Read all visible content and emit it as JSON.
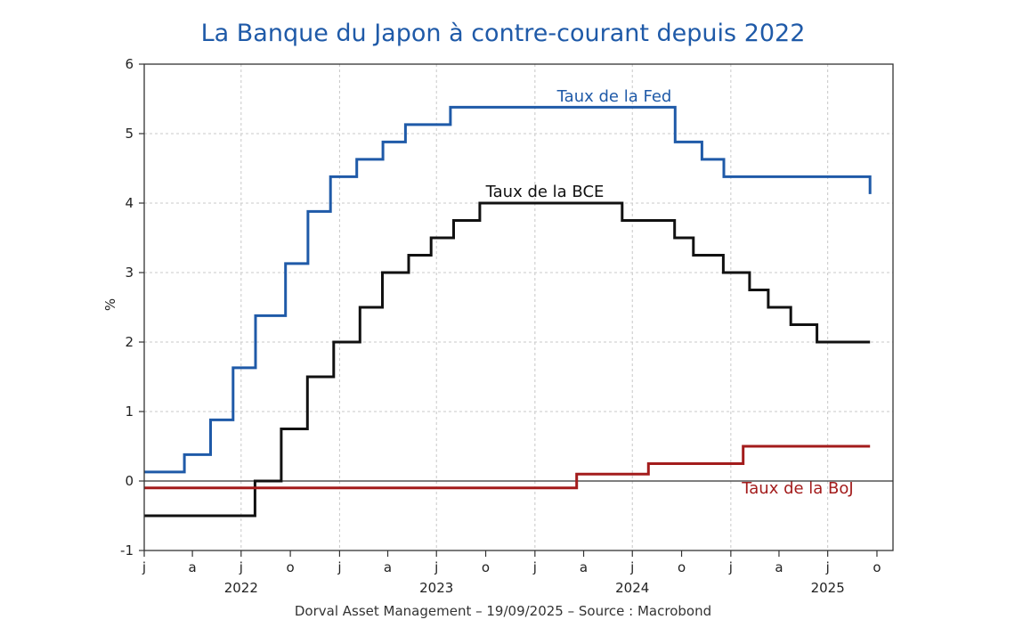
{
  "title": "La Banque du Japon à contre-courant depuis 2022",
  "source": "Dorval Asset Management – 19/09/2025  –  Source : Macrobond",
  "colors": {
    "fed": "#1f5aa8",
    "ecb": "#111111",
    "boj": "#a31c1c",
    "title": "#1f5aa8"
  },
  "chart_data": {
    "type": "line",
    "title": "La Banque du Japon à contre-courant depuis 2022",
    "xlabel": "",
    "ylabel": "%",
    "ylim": [
      -1,
      6
    ],
    "yticks": [
      -1,
      0,
      1,
      2,
      3,
      4,
      5,
      6
    ],
    "xlim": [
      "2022-01-01",
      "2025-10-31"
    ],
    "x_tick_labels": [
      {
        "date": "2022-01-01",
        "label": "j"
      },
      {
        "date": "2022-04-01",
        "label": "a"
      },
      {
        "date": "2022-07-01",
        "label": "j"
      },
      {
        "date": "2022-10-01",
        "label": "o"
      },
      {
        "date": "2023-01-01",
        "label": "j"
      },
      {
        "date": "2023-04-01",
        "label": "a"
      },
      {
        "date": "2023-07-01",
        "label": "j"
      },
      {
        "date": "2023-10-01",
        "label": "o"
      },
      {
        "date": "2024-01-01",
        "label": "j"
      },
      {
        "date": "2024-04-01",
        "label": "a"
      },
      {
        "date": "2024-07-01",
        "label": "j"
      },
      {
        "date": "2024-10-01",
        "label": "o"
      },
      {
        "date": "2025-01-01",
        "label": "j"
      },
      {
        "date": "2025-04-01",
        "label": "a"
      },
      {
        "date": "2025-07-01",
        "label": "j"
      },
      {
        "date": "2025-10-01",
        "label": "o"
      }
    ],
    "year_labels": [
      {
        "date": "2022-07-01",
        "label": "2022"
      },
      {
        "date": "2023-07-01",
        "label": "2023"
      },
      {
        "date": "2024-07-01",
        "label": "2024"
      },
      {
        "date": "2025-07-01",
        "label": "2025"
      }
    ],
    "grid": true,
    "step": true,
    "series": [
      {
        "name": "Taux de la Fed",
        "color": "#1f5aa8",
        "label": "Taux de la Fed",
        "points": [
          [
            "2022-01-01",
            0.13
          ],
          [
            "2022-03-17",
            0.38
          ],
          [
            "2022-05-05",
            0.88
          ],
          [
            "2022-06-16",
            1.63
          ],
          [
            "2022-07-28",
            2.38
          ],
          [
            "2022-09-22",
            3.13
          ],
          [
            "2022-11-03",
            3.88
          ],
          [
            "2022-12-15",
            4.38
          ],
          [
            "2023-02-02",
            4.63
          ],
          [
            "2023-03-23",
            4.88
          ],
          [
            "2023-05-04",
            5.13
          ],
          [
            "2023-07-27",
            5.38
          ],
          [
            "2024-09-19",
            4.88
          ],
          [
            "2024-11-08",
            4.63
          ],
          [
            "2024-12-19",
            4.38
          ],
          [
            "2025-09-18",
            4.13
          ]
        ]
      },
      {
        "name": "Taux de la BCE",
        "color": "#111111",
        "label": "Taux de la BCE",
        "points": [
          [
            "2022-01-01",
            -0.5
          ],
          [
            "2022-07-27",
            0.0
          ],
          [
            "2022-09-14",
            0.75
          ],
          [
            "2022-11-02",
            1.5
          ],
          [
            "2022-12-21",
            2.0
          ],
          [
            "2023-02-08",
            2.5
          ],
          [
            "2023-03-22",
            3.0
          ],
          [
            "2023-05-10",
            3.25
          ],
          [
            "2023-06-21",
            3.5
          ],
          [
            "2023-08-02",
            3.75
          ],
          [
            "2023-09-20",
            4.0
          ],
          [
            "2024-06-12",
            3.75
          ],
          [
            "2024-09-18",
            3.5
          ],
          [
            "2024-10-23",
            3.25
          ],
          [
            "2024-12-18",
            3.0
          ],
          [
            "2025-02-05",
            2.75
          ],
          [
            "2025-03-12",
            2.5
          ],
          [
            "2025-04-23",
            2.25
          ],
          [
            "2025-06-11",
            2.0
          ],
          [
            "2025-09-18",
            2.0
          ]
        ]
      },
      {
        "name": "Taux de la BoJ",
        "color": "#a31c1c",
        "label": "Taux de la BoJ",
        "points": [
          [
            "2022-01-01",
            -0.1
          ],
          [
            "2024-03-19",
            0.1
          ],
          [
            "2024-07-31",
            0.25
          ],
          [
            "2025-01-24",
            0.5
          ],
          [
            "2025-09-18",
            0.5
          ]
        ]
      }
    ]
  }
}
